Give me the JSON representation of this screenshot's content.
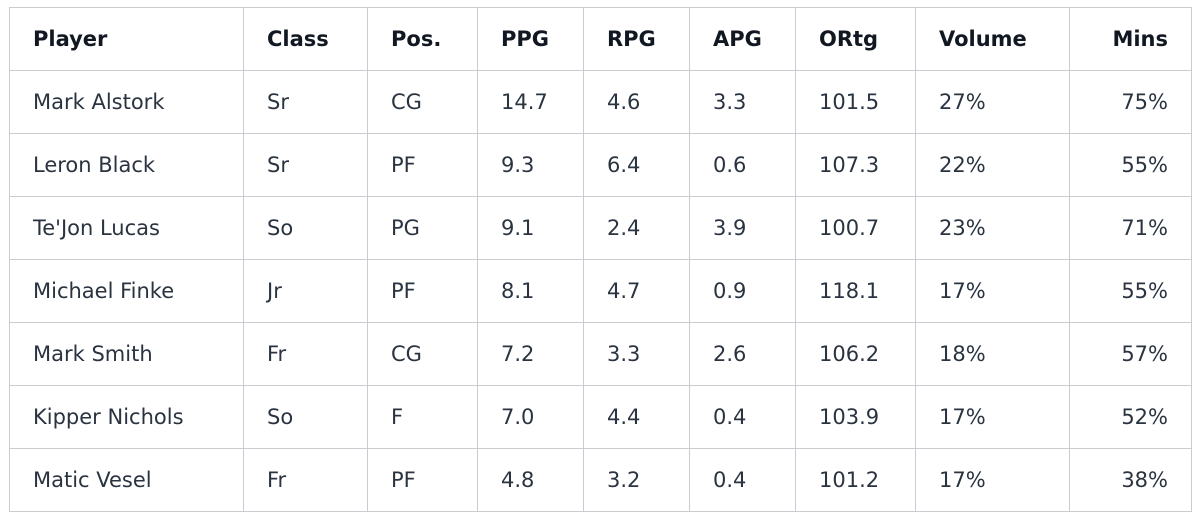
{
  "table": {
    "columns": [
      "Player",
      "Class",
      "Pos.",
      "PPG",
      "RPG",
      "APG",
      "ORtg",
      "Volume",
      "Mins"
    ],
    "rows": [
      [
        "Mark Alstork",
        "Sr",
        "CG",
        "14.7",
        "4.6",
        "3.3",
        "101.5",
        "27%",
        "75%"
      ],
      [
        "Leron Black",
        "Sr",
        "PF",
        "9.3",
        "6.4",
        "0.6",
        "107.3",
        "22%",
        "55%"
      ],
      [
        "Te'Jon Lucas",
        "So",
        "PG",
        "9.1",
        "2.4",
        "3.9",
        "100.7",
        "23%",
        "71%"
      ],
      [
        "Michael Finke",
        "Jr",
        "PF",
        "8.1",
        "4.7",
        "0.9",
        "118.1",
        "17%",
        "55%"
      ],
      [
        "Mark Smith",
        "Fr",
        "CG",
        "7.2",
        "3.3",
        "2.6",
        "106.2",
        "18%",
        "57%"
      ],
      [
        "Kipper Nichols",
        "So",
        "F",
        "7.0",
        "4.4",
        "0.4",
        "103.9",
        "17%",
        "52%"
      ],
      [
        "Matic Vesel",
        "Fr",
        "PF",
        "4.8",
        "3.2",
        "0.4",
        "101.2",
        "17%",
        "38%"
      ]
    ]
  }
}
